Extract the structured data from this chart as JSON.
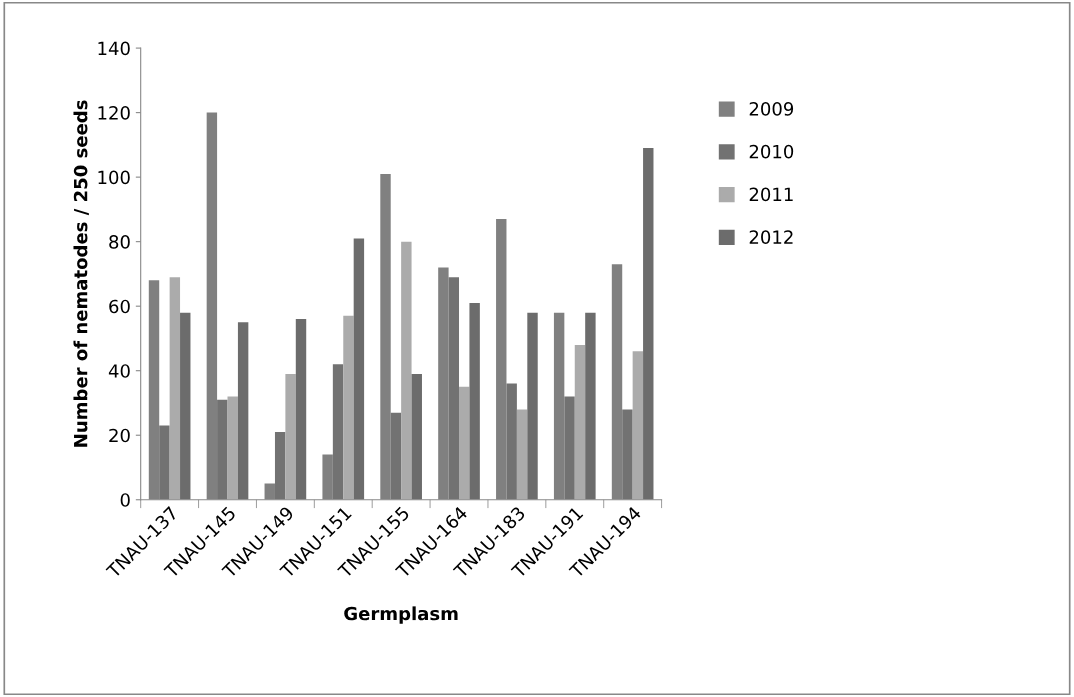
{
  "chart_data": {
    "type": "bar",
    "xlabel": "Germplasm",
    "ylabel": "Number of nematodes / 250 seeds",
    "categories": [
      "TNAU-137",
      "TNAU-145",
      "TNAU-149",
      "TNAU-151",
      "TNAU-155",
      "TNAU-164",
      "TNAU-183",
      "TNAU-191",
      "TNAU-194"
    ],
    "series": [
      {
        "name": "2009",
        "color": "#808080",
        "values": [
          68,
          120,
          5,
          14,
          101,
          72,
          87,
          58,
          73
        ]
      },
      {
        "name": "2010",
        "color": "#727272",
        "values": [
          23,
          31,
          21,
          42,
          27,
          69,
          36,
          32,
          28
        ]
      },
      {
        "name": "2011",
        "color": "#ababab",
        "values": [
          69,
          32,
          39,
          57,
          80,
          35,
          28,
          48,
          46
        ]
      },
      {
        "name": "2012",
        "color": "#6c6c6c",
        "values": [
          58,
          55,
          56,
          81,
          39,
          61,
          58,
          58,
          109
        ]
      }
    ],
    "ylim": [
      0,
      140
    ],
    "yticks": [
      0,
      20,
      40,
      60,
      80,
      100,
      120,
      140
    ],
    "grid": false,
    "legend": "right"
  }
}
